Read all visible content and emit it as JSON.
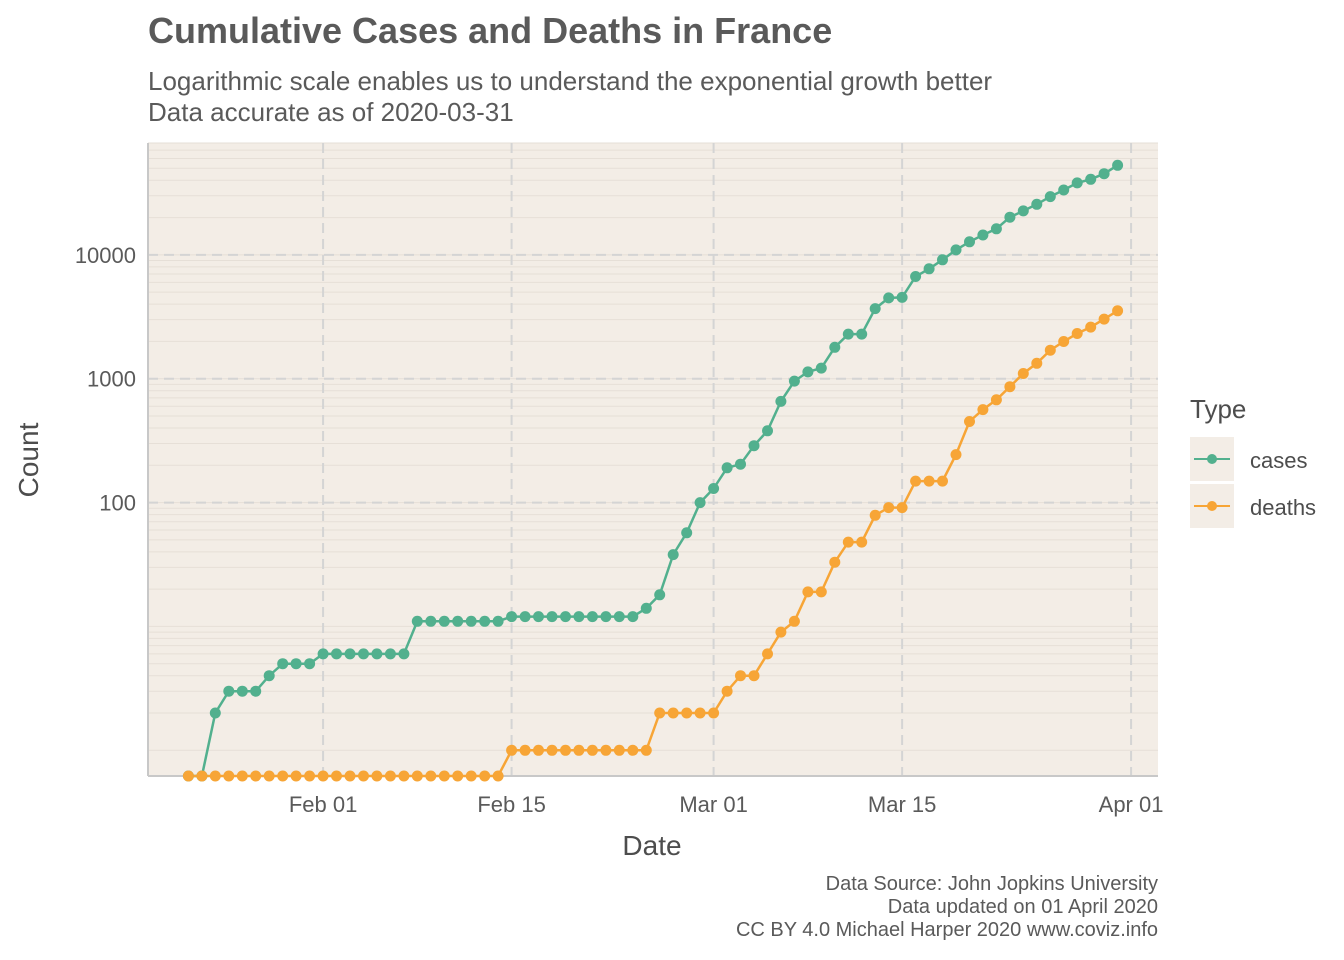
{
  "chart_data": {
    "type": "line",
    "title": "Cumulative Cases and Deaths in France",
    "subtitle": [
      "Logarithmic scale enables us to understand the exponential growth better",
      "Data accurate as of 2020-03-31"
    ],
    "xlabel": "Date",
    "ylabel": "Count",
    "y_scale": "log",
    "x_ticks": [
      {
        "date": "2020-02-01",
        "label": "Feb 01"
      },
      {
        "date": "2020-02-15",
        "label": "Feb 15"
      },
      {
        "date": "2020-03-01",
        "label": "Mar 01"
      },
      {
        "date": "2020-03-15",
        "label": "Mar 15"
      },
      {
        "date": "2020-04-01",
        "label": "Apr 01"
      }
    ],
    "y_ticks": [
      {
        "value": 100,
        "label": "100"
      },
      {
        "value": 1000,
        "label": "1000"
      },
      {
        "value": 10000,
        "label": "10000"
      }
    ],
    "xlim": [
      "2020-01-19",
      "2020-04-03"
    ],
    "ylim": [
      0.62,
      80000
    ],
    "grid": true,
    "legend": {
      "title": "Type",
      "placement": "right"
    },
    "background": "#f3ede6",
    "x": [
      "2020-01-22",
      "2020-01-23",
      "2020-01-24",
      "2020-01-25",
      "2020-01-26",
      "2020-01-27",
      "2020-01-28",
      "2020-01-29",
      "2020-01-30",
      "2020-01-31",
      "2020-02-01",
      "2020-02-02",
      "2020-02-03",
      "2020-02-04",
      "2020-02-05",
      "2020-02-06",
      "2020-02-07",
      "2020-02-08",
      "2020-02-09",
      "2020-02-10",
      "2020-02-11",
      "2020-02-12",
      "2020-02-13",
      "2020-02-14",
      "2020-02-15",
      "2020-02-16",
      "2020-02-17",
      "2020-02-18",
      "2020-02-19",
      "2020-02-20",
      "2020-02-21",
      "2020-02-22",
      "2020-02-23",
      "2020-02-24",
      "2020-02-25",
      "2020-02-26",
      "2020-02-27",
      "2020-02-28",
      "2020-02-29",
      "2020-03-01",
      "2020-03-02",
      "2020-03-03",
      "2020-03-04",
      "2020-03-05",
      "2020-03-06",
      "2020-03-07",
      "2020-03-08",
      "2020-03-09",
      "2020-03-10",
      "2020-03-11",
      "2020-03-12",
      "2020-03-13",
      "2020-03-14",
      "2020-03-15",
      "2020-03-16",
      "2020-03-17",
      "2020-03-18",
      "2020-03-19",
      "2020-03-20",
      "2020-03-21",
      "2020-03-22",
      "2020-03-23",
      "2020-03-24",
      "2020-03-25",
      "2020-03-26",
      "2020-03-27",
      "2020-03-28",
      "2020-03-29",
      "2020-03-30",
      "2020-03-31"
    ],
    "series": [
      {
        "name": "cases",
        "color": "#52b08e",
        "values": [
          0,
          0,
          2,
          3,
          3,
          3,
          4,
          5,
          5,
          5,
          6,
          6,
          6,
          6,
          6,
          6,
          6,
          11,
          11,
          11,
          11,
          11,
          11,
          11,
          12,
          12,
          12,
          12,
          12,
          12,
          12,
          12,
          12,
          12,
          14,
          18,
          38,
          57,
          100,
          130,
          191,
          204,
          288,
          380,
          656,
          957,
          1134,
          1217,
          1794,
          2293,
          2293,
          3681,
          4496,
          4532,
          6683,
          7715,
          9124,
          10970,
          12758,
          14463,
          16243,
          20123,
          22622,
          25600,
          29551,
          33402,
          38105,
          40708,
          45170,
          52827
        ]
      },
      {
        "name": "deaths",
        "color": "#f7a536",
        "values": [
          0,
          0,
          0,
          0,
          0,
          0,
          0,
          0,
          0,
          0,
          0,
          0,
          0,
          0,
          0,
          0,
          0,
          0,
          0,
          0,
          0,
          0,
          0,
          0,
          1,
          1,
          1,
          1,
          1,
          1,
          1,
          1,
          1,
          1,
          1,
          2,
          2,
          2,
          2,
          2,
          3,
          4,
          4,
          6,
          9,
          11,
          19,
          19,
          33,
          48,
          48,
          79,
          91,
          91,
          149,
          149,
          149,
          244,
          451,
          563,
          676,
          862,
          1102,
          1333,
          1698,
          1997,
          2317,
          2611,
          3030,
          3532
        ]
      }
    ]
  },
  "caption": [
    "Data Source: John Jopkins University",
    "Data updated on 01 April 2020",
    "CC BY 4.0 Michael Harper 2020 www.coviz.info"
  ]
}
